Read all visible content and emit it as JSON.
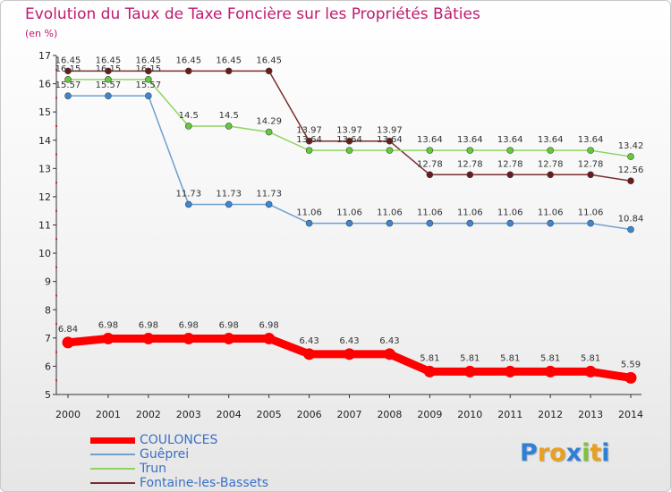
{
  "title": "Evolution du Taux de Taxe Foncière sur les Propriétés Bâties",
  "unit": "(en %)",
  "logo": {
    "letters": [
      {
        "ch": "P",
        "color": "#2f7fd8"
      },
      {
        "ch": "r",
        "color": "#e8a020"
      },
      {
        "ch": "o",
        "color": "#e8a020"
      },
      {
        "ch": "x",
        "color": "#2f7fd8"
      },
      {
        "ch": "i",
        "color": "#7cc43a"
      },
      {
        "ch": "t",
        "color": "#e8a020"
      },
      {
        "ch": "i",
        "color": "#2f7fd8"
      }
    ]
  },
  "chart_data": {
    "type": "line",
    "title": "Evolution du Taux de Taxe Foncière sur les Propriétés Bâties",
    "ylabel": "(en %)",
    "xlabel": "",
    "grid": false,
    "ylim": [
      5,
      17
    ],
    "yticks": [
      "5",
      "6",
      "7",
      "8",
      "9",
      "10",
      "11",
      "12",
      "13",
      "14",
      "15",
      "16",
      "17"
    ],
    "categories": [
      "2000",
      "2001",
      "2002",
      "2003",
      "2004",
      "2005",
      "2006",
      "2007",
      "2008",
      "2009",
      "2010",
      "2011",
      "2012",
      "2013",
      "2014"
    ],
    "legend_position": "bottom-left",
    "series": [
      {
        "name": "COULONCES",
        "color": "#ff0000",
        "marker_color": "#ff0000",
        "emphasis": true,
        "values": [
          6.84,
          6.98,
          6.98,
          6.98,
          6.98,
          6.98,
          6.43,
          6.43,
          6.43,
          5.81,
          5.81,
          5.81,
          5.81,
          5.81,
          5.59
        ],
        "labels": [
          "6.84",
          "6.98",
          "6.98",
          "6.98",
          "6.98",
          "6.98",
          "6.43",
          "6.43",
          "6.43",
          "5.81",
          "5.81",
          "5.81",
          "5.81",
          "5.81",
          "5.59"
        ]
      },
      {
        "name": "Guêprei",
        "color": "#6fa0d0",
        "marker_color": "#3b86d6",
        "emphasis": false,
        "values": [
          15.57,
          15.57,
          15.57,
          11.73,
          11.73,
          11.73,
          11.06,
          11.06,
          11.06,
          11.06,
          11.06,
          11.06,
          11.06,
          11.06,
          10.84
        ],
        "labels": [
          "15.57",
          "15.57",
          "15.57",
          "11.73",
          "11.73",
          "11.73",
          "11.06",
          "11.06",
          "11.06",
          "11.06",
          "11.06",
          "11.06",
          "11.06",
          "11.06",
          "10.84"
        ]
      },
      {
        "name": "Trun",
        "color": "#8fd460",
        "marker_color": "#66c83c",
        "emphasis": false,
        "values": [
          16.15,
          16.15,
          16.15,
          14.5,
          14.5,
          14.29,
          13.64,
          13.64,
          13.64,
          13.64,
          13.64,
          13.64,
          13.64,
          13.64,
          13.42
        ],
        "labels": [
          "16.15",
          "16.15",
          "16.15",
          "14.5",
          "14.5",
          "14.29",
          "13.64",
          "13.64",
          "13.64",
          "13.64",
          "13.64",
          "13.64",
          "13.64",
          "13.64",
          "13.42"
        ]
      },
      {
        "name": "Fontaine-les-Bassets",
        "color": "#7a2e2e",
        "marker_color": "#6a1c1c",
        "emphasis": false,
        "values": [
          16.45,
          16.45,
          16.45,
          16.45,
          16.45,
          16.45,
          13.97,
          13.97,
          13.97,
          12.78,
          12.78,
          12.78,
          12.78,
          12.78,
          12.56
        ],
        "labels": [
          "16.45",
          "16.45",
          "16.45",
          "16.45",
          "16.45",
          "16.45",
          "13.97",
          "13.97",
          "13.97",
          "12.78",
          "12.78",
          "12.78",
          "12.78",
          "12.78",
          "12.56"
        ]
      }
    ]
  }
}
